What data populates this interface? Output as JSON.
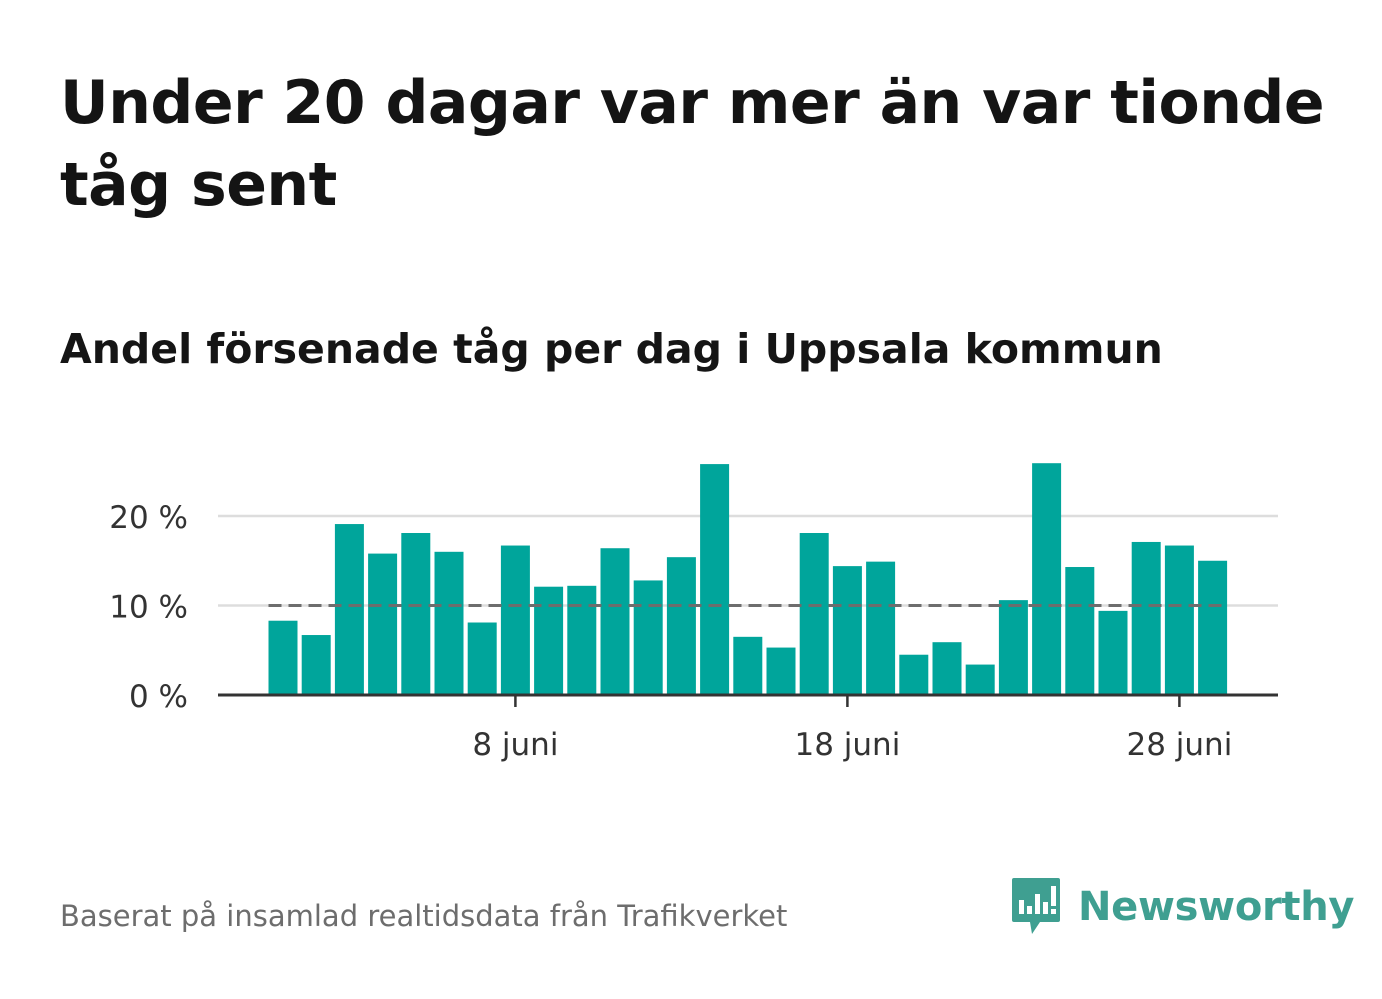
{
  "title": "Under 20 dagar var mer än var tionde tåg sent",
  "subtitle": "Andel försenade tåg per dag i Uppsala kommun",
  "source": "Baserat på insamlad realtidsdata från Trafikverket",
  "brand": {
    "name": "Newsworthy",
    "color": "#3f9f91",
    "icon": "newsworthy-logo-icon"
  },
  "colors": {
    "bar": "#00a59b",
    "reference_line": "#6d6d6d",
    "grid": "#dddddd",
    "axis": "#333333"
  },
  "chart_data": {
    "type": "bar",
    "x": [
      1,
      2,
      3,
      4,
      5,
      6,
      7,
      8,
      9,
      10,
      11,
      12,
      13,
      14,
      15,
      16,
      17,
      18,
      19,
      20,
      21,
      22,
      23,
      24,
      25,
      26,
      27,
      28,
      29
    ],
    "values": [
      8.3,
      6.7,
      19.1,
      15.8,
      18.1,
      16.0,
      8.1,
      16.7,
      12.1,
      12.2,
      16.4,
      12.8,
      15.4,
      25.8,
      6.5,
      5.3,
      18.1,
      14.4,
      14.9,
      4.5,
      5.9,
      3.4,
      10.6,
      25.9,
      14.3,
      9.4,
      17.1,
      16.7,
      15.0
    ],
    "reference_line": 10,
    "x_ticks": [
      {
        "x": 8,
        "label": "8 juni"
      },
      {
        "x": 18,
        "label": "18 juni"
      },
      {
        "x": 28,
        "label": "28 juni"
      }
    ],
    "y_ticks": [
      {
        "value": 0,
        "label": "0 %"
      },
      {
        "value": 10,
        "label": "10 %"
      },
      {
        "value": 20,
        "label": "20 %"
      }
    ],
    "ylim": [
      0,
      27
    ],
    "grid": true,
    "title": "",
    "xlabel": "",
    "ylabel": ""
  }
}
